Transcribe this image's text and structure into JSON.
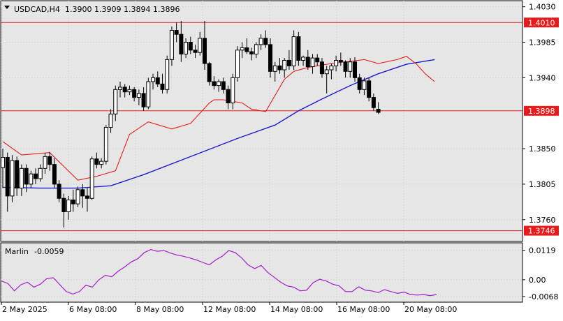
{
  "header": {
    "symbol_tf": "USDCAD,H4",
    "ohlc": "1.3900 1.3909 1.3894 1.3896"
  },
  "indicator": {
    "name": "Marlin",
    "value": "-0.0059"
  },
  "colors": {
    "background": "#ffffff",
    "plot_bg": "#e6e6e6",
    "grid": "#c8c8c8",
    "candle": "#000000",
    "ma_fast": "#e81b1b",
    "ma_slow": "#1c1ccf",
    "level": "#e81b1b",
    "oscillator": "#a020c8",
    "text": "#000000"
  },
  "chart_data": [
    {
      "type": "candlestick",
      "title": "USDCAD,H4",
      "ylim": [
        1.3735,
        1.4035
      ],
      "yticks": [
        "1.4030",
        "1.3985",
        "1.3940",
        "1.3850",
        "1.3805",
        "1.3760"
      ],
      "xticks": [
        "2 May 2025",
        "6 May 08:00",
        "8 May 08:00",
        "12 May 08:00",
        "14 May 08:00",
        "16 May 08:00",
        "20 May 08:00"
      ],
      "levels": [
        {
          "value": 1.401,
          "label": "1.4010"
        },
        {
          "value": 1.3898,
          "label": "1.3898"
        },
        {
          "value": 1.3746,
          "label": "1.3746"
        }
      ],
      "candles": [
        [
          1.3826,
          1.385,
          1.38,
          1.3839
        ],
        [
          1.3839,
          1.3845,
          1.377,
          1.379
        ],
        [
          1.379,
          1.3842,
          1.3782,
          1.3835
        ],
        [
          1.3835,
          1.384,
          1.379,
          1.38
        ],
        [
          1.38,
          1.383,
          1.379,
          1.3825
        ],
        [
          1.3825,
          1.383,
          1.3795,
          1.3805
        ],
        [
          1.3805,
          1.3822,
          1.38,
          1.3818
        ],
        [
          1.3818,
          1.3825,
          1.3805,
          1.3812
        ],
        [
          1.3812,
          1.383,
          1.3808,
          1.3825
        ],
        [
          1.3825,
          1.3845,
          1.3818,
          1.384
        ],
        [
          1.384,
          1.3846,
          1.3822,
          1.383
        ],
        [
          1.383,
          1.3838,
          1.38,
          1.3805
        ],
        [
          1.3805,
          1.381,
          1.3782,
          1.3787
        ],
        [
          1.3787,
          1.3793,
          1.375,
          1.377
        ],
        [
          1.377,
          1.379,
          1.376,
          1.3785
        ],
        [
          1.3785,
          1.3798,
          1.377,
          1.378
        ],
        [
          1.378,
          1.3802,
          1.3776,
          1.3798
        ],
        [
          1.3798,
          1.3805,
          1.3775,
          1.379
        ],
        [
          1.379,
          1.38,
          1.377,
          1.3787
        ],
        [
          1.3787,
          1.384,
          1.3785,
          1.3837
        ],
        [
          1.3837,
          1.3845,
          1.3825,
          1.383
        ],
        [
          1.383,
          1.3838,
          1.3825,
          1.3834
        ],
        [
          1.3834,
          1.388,
          1.383,
          1.3877
        ],
        [
          1.3877,
          1.39,
          1.387,
          1.3894
        ],
        [
          1.3894,
          1.393,
          1.3885,
          1.3925
        ],
        [
          1.3925,
          1.3935,
          1.3915,
          1.3928
        ],
        [
          1.3928,
          1.3932,
          1.3915,
          1.3922
        ],
        [
          1.3922,
          1.393,
          1.3918,
          1.3925
        ],
        [
          1.3925,
          1.3928,
          1.391,
          1.3915
        ],
        [
          1.3915,
          1.3925,
          1.3905,
          1.392
        ],
        [
          1.392,
          1.3928,
          1.3898,
          1.3903
        ],
        [
          1.3903,
          1.394,
          1.39,
          1.3935
        ],
        [
          1.3935,
          1.3945,
          1.3925,
          1.394
        ],
        [
          1.394,
          1.3948,
          1.3928,
          1.3932
        ],
        [
          1.3932,
          1.3945,
          1.392,
          1.3925
        ],
        [
          1.3925,
          1.3968,
          1.392,
          1.3963
        ],
        [
          1.3963,
          1.4005,
          1.3955,
          1.4
        ],
        [
          1.4,
          1.401,
          1.3985,
          1.3995
        ],
        [
          1.3995,
          1.4012,
          1.396,
          1.397
        ],
        [
          1.397,
          1.399,
          1.3965,
          1.3985
        ],
        [
          1.3985,
          1.3992,
          1.397,
          1.3975
        ],
        [
          1.3975,
          1.3982,
          1.3965,
          1.3972
        ],
        [
          1.3972,
          1.3998,
          1.3968,
          1.399
        ],
        [
          1.399,
          1.4012,
          1.395,
          1.3958
        ],
        [
          1.3958,
          1.396,
          1.393,
          1.3935
        ],
        [
          1.3935,
          1.3942,
          1.3925,
          1.393
        ],
        [
          1.393,
          1.3938,
          1.3922,
          1.3935
        ],
        [
          1.3935,
          1.394,
          1.392,
          1.3925
        ],
        [
          1.3925,
          1.393,
          1.39,
          1.3908
        ],
        [
          1.3908,
          1.3945,
          1.39,
          1.394
        ],
        [
          1.394,
          1.398,
          1.3935,
          1.3975
        ],
        [
          1.3975,
          1.3985,
          1.3965,
          1.3978
        ],
        [
          1.3978,
          1.399,
          1.397,
          1.3973
        ],
        [
          1.3973,
          1.3978,
          1.3962,
          1.397
        ],
        [
          1.397,
          1.3985,
          1.3965,
          1.3982
        ],
        [
          1.3982,
          1.3995,
          1.3975,
          1.399
        ],
        [
          1.399,
          1.4,
          1.3978,
          1.3982
        ],
        [
          1.3982,
          1.399,
          1.394,
          1.3948
        ],
        [
          1.3948,
          1.396,
          1.3935,
          1.3955
        ],
        [
          1.3955,
          1.3965,
          1.3945,
          1.395
        ],
        [
          1.395,
          1.3965,
          1.394,
          1.3962
        ],
        [
          1.3962,
          1.3975,
          1.395,
          1.3955
        ],
        [
          1.3955,
          1.4,
          1.395,
          1.3992
        ],
        [
          1.3992,
          1.3998,
          1.3955,
          1.3962
        ],
        [
          1.3962,
          1.3968,
          1.3955,
          1.3966
        ],
        [
          1.3966,
          1.3975,
          1.395,
          1.3954
        ],
        [
          1.3954,
          1.397,
          1.3945,
          1.3965
        ],
        [
          1.3965,
          1.397,
          1.3955,
          1.396
        ],
        [
          1.396,
          1.3965,
          1.394,
          1.3945
        ],
        [
          1.3945,
          1.3955,
          1.392,
          1.395
        ],
        [
          1.395,
          1.3958,
          1.3938,
          1.3955
        ],
        [
          1.3955,
          1.3968,
          1.3948,
          1.3962
        ],
        [
          1.3962,
          1.3972,
          1.3955,
          1.396
        ],
        [
          1.396,
          1.3962,
          1.394,
          1.3948
        ],
        [
          1.3948,
          1.3965,
          1.394,
          1.396
        ],
        [
          1.396,
          1.3966,
          1.3935,
          1.394
        ],
        [
          1.394,
          1.3945,
          1.392,
          1.3925
        ],
        [
          1.3925,
          1.394,
          1.3918,
          1.3936
        ],
        [
          1.3936,
          1.394,
          1.391,
          1.3915
        ],
        [
          1.3915,
          1.392,
          1.3898,
          1.3902
        ],
        [
          1.39,
          1.3909,
          1.3894,
          1.3896
        ]
      ],
      "ma_fast": [
        [
          0,
          1.3859
        ],
        [
          4,
          1.3842
        ],
        [
          10,
          1.3845
        ],
        [
          16,
          1.381
        ],
        [
          20,
          1.3815
        ],
        [
          24,
          1.3822
        ],
        [
          27,
          1.3868
        ],
        [
          31,
          1.3884
        ],
        [
          36,
          1.3875
        ],
        [
          40,
          1.3882
        ],
        [
          44,
          1.3908
        ],
        [
          45,
          1.3912
        ],
        [
          47,
          1.3912
        ],
        [
          51,
          1.3908
        ],
        [
          53,
          1.39
        ],
        [
          56,
          1.3897
        ],
        [
          60,
          1.3938
        ],
        [
          62,
          1.3948
        ],
        [
          65,
          1.3953
        ],
        [
          70,
          1.3958
        ],
        [
          77,
          1.3963
        ],
        [
          80,
          1.3958
        ],
        [
          84,
          1.3963
        ],
        [
          86,
          1.3967
        ],
        [
          88,
          1.3958
        ],
        [
          90,
          1.3945
        ],
        [
          92,
          1.3935
        ]
      ],
      "ma_slow": [
        [
          0,
          1.3801
        ],
        [
          8,
          1.38
        ],
        [
          16,
          1.38
        ],
        [
          23,
          1.3803
        ],
        [
          30,
          1.3817
        ],
        [
          40,
          1.384
        ],
        [
          50,
          1.3863
        ],
        [
          58,
          1.388
        ],
        [
          63,
          1.3898
        ],
        [
          68,
          1.3913
        ],
        [
          74,
          1.393
        ],
        [
          80,
          1.3945
        ],
        [
          86,
          1.3957
        ],
        [
          92,
          1.3963
        ]
      ]
    },
    {
      "type": "line",
      "title": "Marlin -0.0059",
      "ylim": [
        -0.0085,
        0.0135
      ],
      "yticks": [
        "0.0119",
        "0.00",
        "-0.0068"
      ],
      "series": [
        {
          "name": "Marlin",
          "values": [
            [
              0,
              -0.0005
            ],
            [
              2,
              -0.0015
            ],
            [
              4,
              -0.0045
            ],
            [
              6,
              -0.002
            ],
            [
              8,
              -0.001
            ],
            [
              10,
              -0.003
            ],
            [
              12,
              -0.0018
            ],
            [
              14,
              0.0005
            ],
            [
              16,
              0.0008
            ],
            [
              18,
              -0.002
            ],
            [
              20,
              -0.0048
            ],
            [
              22,
              -0.0058
            ],
            [
              24,
              -0.0048
            ],
            [
              26,
              -0.0022
            ],
            [
              28,
              -0.003
            ],
            [
              30,
              0.0
            ],
            [
              32,
              0.0018
            ],
            [
              34,
              0.0012
            ],
            [
              36,
              0.0035
            ],
            [
              38,
              0.0052
            ],
            [
              40,
              0.0072
            ],
            [
              42,
              0.0085
            ],
            [
              44,
              0.011
            ],
            [
              46,
              0.0122
            ],
            [
              48,
              0.0115
            ],
            [
              50,
              0.0118
            ],
            [
              52,
              0.0108
            ],
            [
              54,
              0.01
            ],
            [
              56,
              0.0095
            ],
            [
              58,
              0.0088
            ],
            [
              60,
              0.008
            ],
            [
              62,
              0.007
            ],
            [
              64,
              0.006
            ],
            [
              66,
              0.008
            ],
            [
              68,
              0.0095
            ],
            [
              70,
              0.0118
            ],
            [
              72,
              0.011
            ],
            [
              74,
              0.0088
            ],
            [
              76,
              0.006
            ],
            [
              78,
              0.0045
            ],
            [
              80,
              0.0058
            ],
            [
              82,
              0.003
            ],
            [
              84,
              0.001
            ],
            [
              86,
              -0.001
            ],
            [
              88,
              -0.0025
            ],
            [
              90,
              -0.003
            ],
            [
              92,
              -0.0045
            ],
            [
              94,
              -0.0042
            ],
            [
              96,
              -0.0012
            ],
            [
              98,
              0.0002
            ],
            [
              100,
              -0.0005
            ],
            [
              102,
              -0.0018
            ],
            [
              104,
              -0.0025
            ],
            [
              106,
              -0.0048
            ],
            [
              108,
              -0.0048
            ],
            [
              110,
              -0.0028
            ],
            [
              112,
              -0.0042
            ],
            [
              114,
              -0.0045
            ],
            [
              116,
              -0.0052
            ],
            [
              118,
              -0.004
            ],
            [
              120,
              -0.0048
            ],
            [
              122,
              -0.0055
            ],
            [
              124,
              -0.005
            ],
            [
              126,
              -0.006
            ],
            [
              128,
              -0.0062
            ],
            [
              130,
              -0.006
            ],
            [
              132,
              -0.0064
            ],
            [
              134,
              -0.006
            ]
          ]
        }
      ]
    }
  ]
}
